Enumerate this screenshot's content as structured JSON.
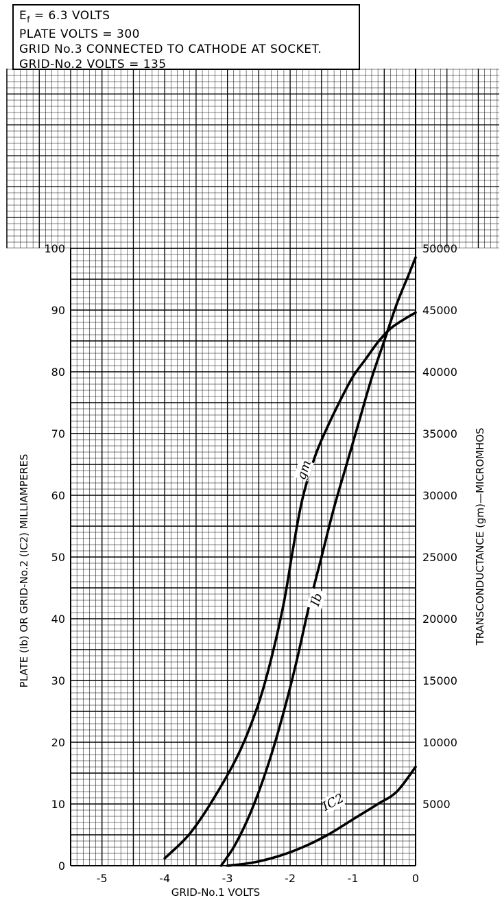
{
  "conditions": {
    "filament": {
      "symbol": "E",
      "subscript": "f",
      "text": "= 6.3 VOLTS"
    },
    "lines": [
      "PLATE VOLTS = 300",
      "GRID No.3  CONNECTED  TO CATHODE AT SOCKET.",
      "GRID-No.2  VOLTS = 135"
    ]
  },
  "chart_data": {
    "type": "line",
    "xlabel": "GRID-No.1 VOLTS",
    "ylabel": "PLATE (Ib) OR GRID-No.2 (IC2) MILLIAMPERES",
    "y2label": "TRANSCONDUCTANCE (gm)—MICROMHOS",
    "xlim": [
      -5.5,
      0
    ],
    "ylim": [
      0,
      100
    ],
    "y2lim": [
      0,
      50000
    ],
    "xticks": [
      -5,
      -4,
      -3,
      -2,
      -1,
      0
    ],
    "xtick_labels": [
      "-5",
      "-4",
      "-3",
      "-2",
      "-1",
      "0"
    ],
    "yticks": [
      0,
      10,
      20,
      30,
      40,
      50,
      60,
      70,
      80,
      90,
      100
    ],
    "ytick_labels": [
      "0",
      "10",
      "20",
      "30",
      "40",
      "50",
      "60",
      "70",
      "80",
      "90",
      "100"
    ],
    "y2ticks": [
      5000,
      10000,
      15000,
      20000,
      25000,
      30000,
      35000,
      40000,
      45000,
      50000
    ],
    "y2tick_labels": [
      "5000",
      "10000",
      "15000",
      "20000",
      "25000",
      "30000",
      "35000",
      "40000",
      "45000",
      "50000"
    ],
    "grid": true,
    "series": [
      {
        "name": "gm",
        "axis": "right",
        "x": [
          -4.0,
          -3.6,
          -3.2,
          -2.8,
          -2.5,
          -2.3,
          -2.1,
          -1.95,
          -1.8,
          -1.6,
          -1.4,
          -1.2,
          -1.0,
          -0.8,
          -0.6,
          -0.4,
          -0.2,
          0.0
        ],
        "y": [
          600,
          2600,
          5600,
          9300,
          13200,
          16800,
          21300,
          25800,
          29800,
          33200,
          35600,
          37700,
          39600,
          41000,
          42400,
          43500,
          44200,
          44800
        ]
      },
      {
        "name": "Ib",
        "axis": "left",
        "x": [
          -3.1,
          -2.9,
          -2.7,
          -2.5,
          -2.3,
          -2.1,
          -1.9,
          -1.7,
          -1.5,
          -1.3,
          -1.1,
          -0.9,
          -0.7,
          -0.5,
          -0.3,
          -0.1,
          0.0
        ],
        "y": [
          0,
          3,
          7,
          12,
          18,
          25,
          33,
          42,
          50,
          58,
          65,
          72,
          79,
          85,
          91,
          96,
          98.5
        ]
      },
      {
        "name": "IC2",
        "axis": "left",
        "x": [
          -3.0,
          -2.6,
          -2.2,
          -1.8,
          -1.4,
          -1.0,
          -0.6,
          -0.3,
          0.0
        ],
        "y": [
          0,
          0.5,
          1.5,
          3,
          5,
          7.5,
          10,
          12,
          16
        ]
      }
    ],
    "curve_labels": [
      {
        "text": "gm",
        "at": [
          -1.75,
          64
        ]
      },
      {
        "text": "Ib",
        "at": [
          -1.55,
          43
        ]
      },
      {
        "text": "IC2",
        "at": [
          -1.3,
          10
        ]
      }
    ]
  }
}
